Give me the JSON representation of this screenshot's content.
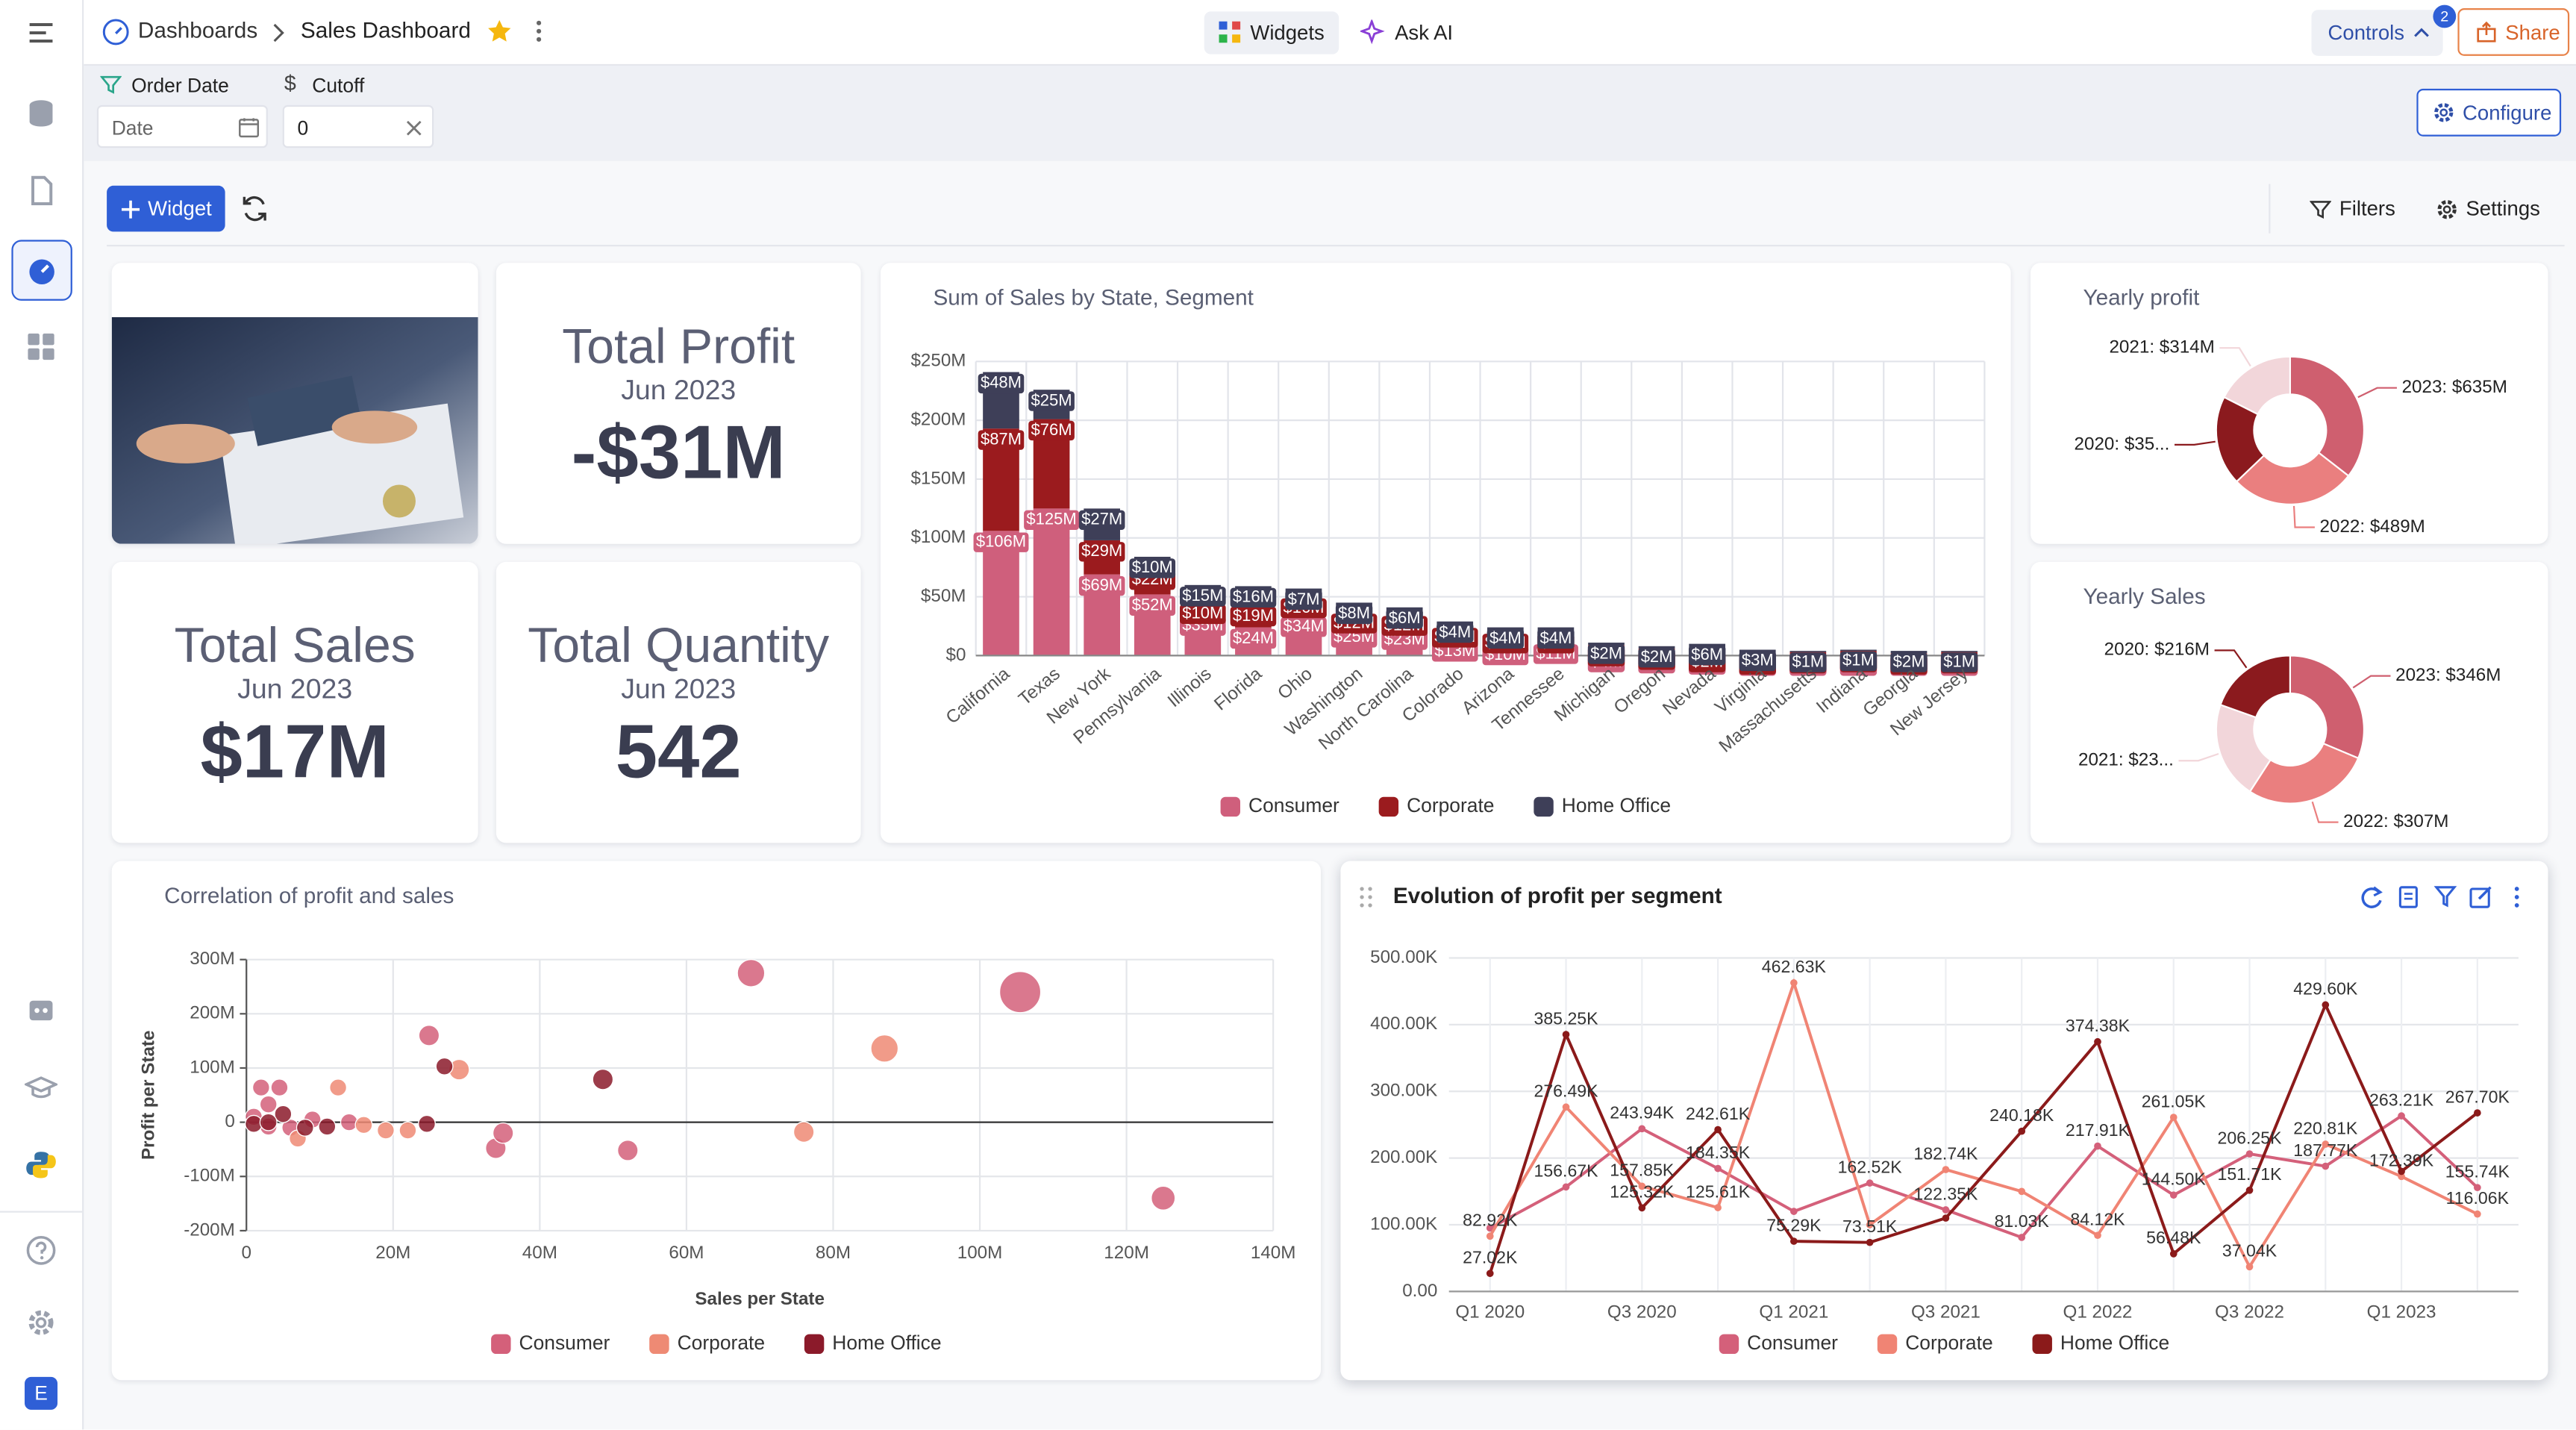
{
  "header": {
    "breadcrumb": [
      "Dashboards",
      "Sales Dashboard"
    ],
    "widgets": "Widgets",
    "ask_ai": "Ask AI",
    "controls": "Controls",
    "controls_badge": "2",
    "share": "Share"
  },
  "filters": {
    "order_date": "Order Date",
    "date_placeholder": "Date",
    "cutoff": "Cutoff",
    "cutoff_value": "0",
    "configure": "Configure"
  },
  "toolbar": {
    "widget": "Widget",
    "filters": "Filters",
    "settings": "Settings"
  },
  "kpis": [
    {
      "title": "Total Profit",
      "period": "Jun 2023",
      "value": "-$31M"
    },
    {
      "title": "Total Sales",
      "period": "Jun 2023",
      "value": "$17M"
    },
    {
      "title": "Total Quantity",
      "period": "Jun 2023",
      "value": "542"
    }
  ],
  "user_initial": "E",
  "chart_data": [
    {
      "type": "bar",
      "stacked": true,
      "title": "Sum of Sales by State, Segment",
      "categories": [
        "California",
        "Texas",
        "New York",
        "Pennsylvania",
        "Illinois",
        "Florida",
        "Ohio",
        "Washington",
        "North Carolina",
        "Colorado",
        "Arizona",
        "Tennessee",
        "Michigan",
        "Oregon",
        "Nevada",
        "Virginia",
        "Massachusetts",
        "Indiana",
        "Georgia",
        "New Jersey"
      ],
      "series": [
        {
          "name": "Consumer",
          "color": "#cf5f7c",
          "values": [
            106,
            125,
            69,
            52,
            35,
            24,
            34,
            25,
            23,
            13,
            10,
            11,
            4,
            3,
            2,
            1,
            1,
            1,
            1,
            1
          ],
          "value_labels": [
            "$106M",
            "$125M",
            "$69M",
            "$52M",
            "$35M",
            "$24M",
            "$34M",
            "$25M",
            "$23M",
            "$13M",
            "$10M",
            "$11M",
            "$4M",
            "$3M",
            "$2M",
            "$1M",
            "$1M",
            "$1M",
            "$1M",
            "$1M"
          ]
        },
        {
          "name": "Corporate",
          "color": "#9b1b1e",
          "values": [
            87,
            76,
            29,
            22,
            10,
            19,
            16,
            12,
            12,
            12,
            10,
            9,
            5,
            3,
            2,
            1,
            2,
            3,
            1,
            2
          ],
          "value_labels": [
            "$87M",
            "$76M",
            "$29M",
            "$22M",
            "$10M",
            "$19M",
            "$16M",
            "$12M",
            "$12M",
            "$12M",
            "$10M",
            "$9M",
            "$5M",
            "$3M",
            "$2M",
            "$1M",
            "$2M",
            "$3M",
            "$1M",
            "$2M"
          ]
        },
        {
          "name": "Home Office",
          "color": "#3e3f58",
          "values": [
            48,
            25,
            27,
            10,
            15,
            16,
            7,
            8,
            6,
            4,
            4,
            4,
            2,
            2,
            6,
            3,
            1,
            1,
            2,
            1
          ],
          "value_labels": [
            "$48M",
            "$25M",
            "$27M",
            "$10M",
            "$15M",
            "$16M",
            "$7M",
            "$8M",
            "$6M",
            "$4M",
            "$4M",
            "$4M",
            "$2M",
            "$2M",
            "$6M",
            "$3M",
            "$1M",
            "$1M",
            "$2M",
            "$1M"
          ]
        }
      ],
      "ylim": [
        0,
        250
      ],
      "yticks": [
        {
          "value": 0,
          "label": "$0"
        },
        {
          "value": 50,
          "label": "$50M"
        },
        {
          "value": 100,
          "label": "$100M"
        },
        {
          "value": 150,
          "label": "$150M"
        },
        {
          "value": 200,
          "label": "$200M"
        },
        {
          "value": 250,
          "label": "$250M"
        }
      ],
      "grid": true
    },
    {
      "type": "pie",
      "donut": true,
      "title": "Yearly profit",
      "values": [
        635,
        489,
        350,
        314
      ],
      "value_labels": [
        "2023: $635M",
        "2022: $489M",
        "2020: $35...",
        "2021: $314M"
      ],
      "colors": [
        "#cf5f6f",
        "#ea7f7f",
        "#8b1a1e",
        "#f2d6da"
      ]
    },
    {
      "type": "pie",
      "donut": true,
      "title": "Yearly Sales",
      "values": [
        346,
        307,
        235,
        216
      ],
      "value_labels": [
        "2023: $346M",
        "2022: $307M",
        "2021: $23...",
        "2020: $216M"
      ],
      "colors": [
        "#cf5f6f",
        "#ea7f7f",
        "#f2d6da",
        "#8b1a1e"
      ]
    },
    {
      "type": "scatter",
      "title": "Correlation of profit and sales",
      "xlabel": "Sales per State",
      "ylabel": "Profit per State",
      "series": [
        {
          "name": "Consumer",
          "color": "#d4607a",
          "x": [
            68.8,
            105.5,
            125,
            24.9,
            34,
            52,
            2,
            4.5,
            3,
            1,
            6,
            9,
            14,
            3,
            35
          ],
          "values": [
            275,
            240,
            -140,
            160,
            -48,
            -52,
            64,
            64,
            33,
            10,
            -10,
            5,
            0,
            -8,
            -20
          ],
          "sizes": [
            6,
            10,
            5,
            4,
            4,
            4,
            3,
            3,
            3,
            3,
            3,
            3,
            3,
            3,
            4
          ]
        },
        {
          "name": "Corporate",
          "color": "#ee8a74",
          "x": [
            87,
            76,
            29,
            12.5,
            19,
            22,
            7,
            16
          ],
          "values": [
            136,
            -18,
            97,
            64,
            -15,
            -15,
            -30,
            -5
          ],
          "sizes": [
            6,
            4,
            4,
            3,
            3,
            3,
            3,
            3
          ]
        },
        {
          "name": "Home Office",
          "color": "#8b1a2a",
          "x": [
            48.6,
            27,
            24.6,
            1,
            5,
            8,
            11,
            3
          ],
          "values": [
            79,
            103,
            -3,
            -3,
            15,
            -10,
            -8,
            0
          ],
          "sizes": [
            4,
            3,
            3,
            3,
            3,
            3,
            3,
            3
          ]
        }
      ],
      "xlim": [
        0,
        140
      ],
      "xticks": [
        0,
        {
          "value": 20,
          "label": "20M"
        },
        {
          "value": 40,
          "label": "40M"
        },
        {
          "value": 60,
          "label": "60M"
        },
        {
          "value": 80,
          "label": "80M"
        },
        {
          "value": 100,
          "label": "100M"
        },
        {
          "value": 120,
          "label": "120M"
        },
        {
          "value": 140,
          "label": "140M"
        }
      ],
      "ylim": [
        -200,
        300
      ],
      "yticks": [
        {
          "value": -200,
          "label": "-200M"
        },
        {
          "value": -100,
          "label": "-100M"
        },
        0,
        {
          "value": 100,
          "label": "100M"
        },
        {
          "value": 200,
          "label": "200M"
        },
        {
          "value": 300,
          "label": "300M"
        }
      ],
      "grid": true
    },
    {
      "type": "line",
      "title": "Evolution of profit per segment",
      "categories": [
        "Q1 2020",
        null,
        "Q3 2020",
        null,
        "Q1 2021",
        null,
        "Q3 2021",
        null,
        "Q1 2022",
        null,
        "Q3 2022",
        null,
        "Q1 2023",
        null
      ],
      "series": [
        {
          "name": "Consumer",
          "color": "#d4607a",
          "values": [
            95,
            156.67,
            243.94,
            184.35,
            120,
            162.52,
            122.35,
            81.03,
            217.91,
            144.5,
            206.25,
            187.77,
            263.21,
            155.74
          ],
          "value_labels": [
            null,
            "156.67K",
            "243.94K",
            "184.35K",
            null,
            "162.52K",
            "122.35K",
            "81.03K",
            "217.91K",
            "144.50K",
            "206.25K",
            "187.77K",
            "263.21K",
            "155.74K"
          ]
        },
        {
          "name": "Corporate",
          "color": "#f08474",
          "values": [
            82.92,
            276.49,
            157.85,
            125.61,
            462.63,
            100,
            182.74,
            150,
            84.12,
            261.05,
            37.04,
            220.81,
            172.39,
            116.06
          ],
          "value_labels": [
            "82.92K",
            "276.49K",
            "157.85K",
            "125.61K",
            "462.63K",
            null,
            "182.74K",
            null,
            "84.12K",
            "261.05K",
            "37.04K",
            "220.81K",
            "172.39K",
            "116.06K"
          ]
        },
        {
          "name": "Home Office",
          "color": "#8b1a1a",
          "values": [
            27.02,
            385.25,
            125.32,
            242.61,
            75.29,
            73.51,
            110,
            240.18,
            374.38,
            56.48,
            151.71,
            429.6,
            180,
            267.7
          ],
          "value_labels": [
            "27.02K",
            "385.25K",
            "125.32K",
            "242.61K",
            "75.29K",
            "73.51K",
            null,
            "240.18K",
            "374.38K",
            "56.48K",
            "151.71K",
            "429.60K",
            null,
            "267.70K"
          ]
        }
      ],
      "ylim": [
        0,
        500
      ],
      "yticks": [
        {
          "value": 0,
          "label": "0.00"
        },
        {
          "value": 100,
          "label": "100.00K"
        },
        {
          "value": 200,
          "label": "200.00K"
        },
        {
          "value": 300,
          "label": "300.00K"
        },
        {
          "value": 400,
          "label": "400.00K"
        },
        {
          "value": 500,
          "label": "500.00K"
        }
      ],
      "grid": true
    }
  ]
}
